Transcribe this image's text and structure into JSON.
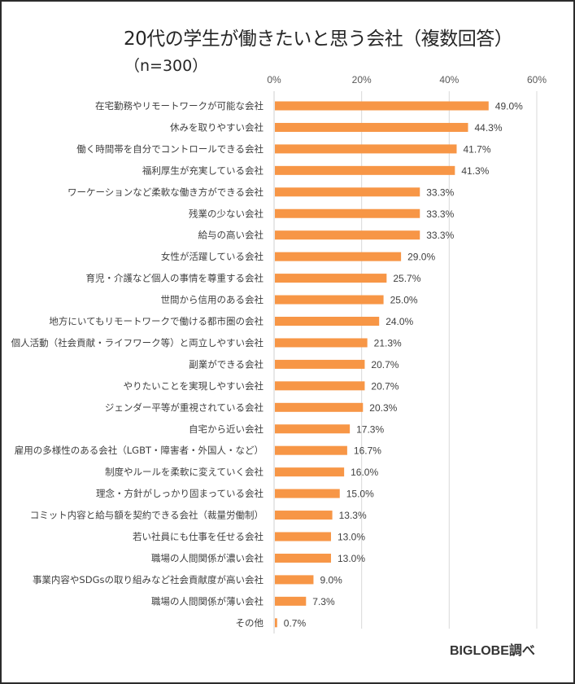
{
  "chart_data": {
    "type": "bar",
    "orientation": "horizontal",
    "title": "20代の学生が働きたいと思う会社（複数回答）",
    "subtitle": "（n=300）",
    "source": "BIGLOBE調べ",
    "xlabel": "",
    "ylabel": "",
    "xlim": [
      0,
      60
    ],
    "xticks": [
      0,
      20,
      40,
      60
    ],
    "xtick_labels": [
      "0%",
      "20%",
      "40%",
      "60%"
    ],
    "xtick_position": "top",
    "grid": true,
    "bar_color": "#F79646",
    "categories": [
      "在宅勤務やリモートワークが可能な会社",
      "休みを取りやすい会社",
      "働く時間帯を自分でコントロールできる会社",
      "福利厚生が充実している会社",
      "ワーケーションなど柔軟な働き方ができる会社",
      "残業の少ない会社",
      "給与の高い会社",
      "女性が活躍している会社",
      "育児・介護など個人の事情を尊重する会社",
      "世間から信用のある会社",
      "地方にいてもリモートワークで働ける都市圏の会社",
      "個人活動（社会貢献・ライフワーク等）と両立しやすい会社",
      "副業ができる会社",
      "やりたいことを実現しやすい会社",
      "ジェンダー平等が重視されている会社",
      "自宅から近い会社",
      "雇用の多様性のある会社（LGBT・障害者・外国人・など）",
      "制度やルールを柔軟に変えていく会社",
      "理念・方針がしっかり固まっている会社",
      "コミット内容と給与額を契約できる会社（裁量労働制）",
      "若い社員にも仕事を任せる会社",
      "職場の人間関係が濃い会社",
      "事業内容やSDGsの取り組みなど社会貢献度が高い会社",
      "職場の人間関係が薄い会社",
      "その他"
    ],
    "values": [
      49.0,
      44.3,
      41.7,
      41.3,
      33.3,
      33.3,
      33.3,
      29.0,
      25.7,
      25.0,
      24.0,
      21.3,
      20.7,
      20.7,
      20.3,
      17.3,
      16.7,
      16.0,
      15.0,
      13.3,
      13.0,
      13.0,
      9.0,
      7.3,
      0.7
    ],
    "value_labels": [
      "49.0%",
      "44.3%",
      "41.7%",
      "41.3%",
      "33.3%",
      "33.3%",
      "33.3%",
      "29.0%",
      "25.7%",
      "25.0%",
      "24.0%",
      "21.3%",
      "20.7%",
      "20.7%",
      "20.3%",
      "17.3%",
      "16.7%",
      "16.0%",
      "15.0%",
      "13.3%",
      "13.0%",
      "13.0%",
      "9.0%",
      "7.3%",
      "0.7%"
    ],
    "unit": "%"
  }
}
